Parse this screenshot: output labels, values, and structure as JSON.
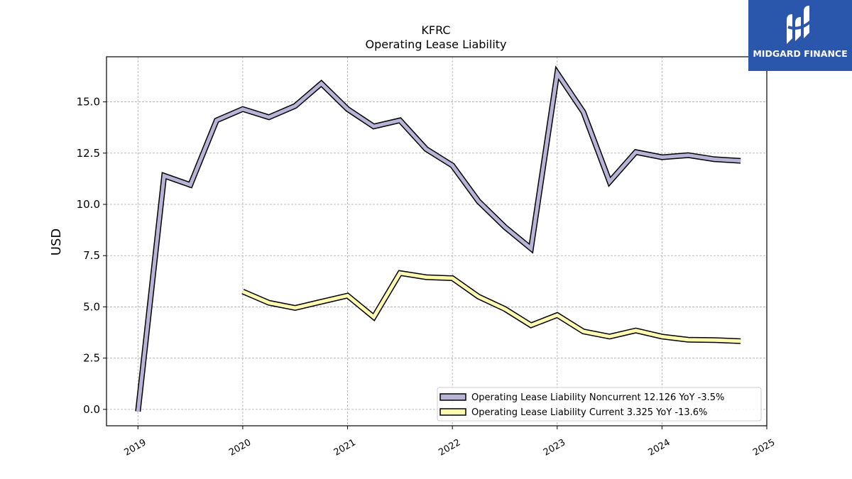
{
  "chart_data": {
    "type": "line",
    "title": "KFRC",
    "subtitle": "Operating Lease Liability",
    "xlabel": "",
    "ylabel": "USD",
    "xlim": [
      2018.7,
      2025.0
    ],
    "ylim": [
      -0.8,
      17.2
    ],
    "x_ticks": [
      2019,
      2020,
      2021,
      2022,
      2023,
      2024,
      2025
    ],
    "y_ticks": [
      0.0,
      2.5,
      5.0,
      7.5,
      10.0,
      12.5,
      15.0
    ],
    "grid": true,
    "legend_position": "lower-right",
    "series": [
      {
        "name": "Operating Lease Liability Noncurrent  12.126 YoY -3.5%",
        "color": "#b8b4d8",
        "x": [
          2019.0,
          2019.25,
          2019.5,
          2019.75,
          2020.0,
          2020.25,
          2020.5,
          2020.75,
          2021.0,
          2021.25,
          2021.5,
          2021.75,
          2022.0,
          2022.25,
          2022.5,
          2022.75,
          2023.0,
          2023.25,
          2023.5,
          2023.75,
          2024.0,
          2024.25,
          2024.5,
          2024.75
        ],
        "y": [
          -0.1,
          11.4,
          10.95,
          14.1,
          14.65,
          14.25,
          14.8,
          15.9,
          14.65,
          13.8,
          14.1,
          12.7,
          11.9,
          10.15,
          8.9,
          7.85,
          16.4,
          14.5,
          11.1,
          12.55,
          12.3,
          12.4,
          12.2,
          12.126
        ]
      },
      {
        "name": "Operating Lease Liability Current  3.325 YoY -13.6%",
        "color": "#fffbb0",
        "x": [
          2020.0,
          2020.25,
          2020.5,
          2020.75,
          2021.0,
          2021.25,
          2021.5,
          2021.75,
          2022.0,
          2022.25,
          2022.5,
          2022.75,
          2023.0,
          2023.25,
          2023.5,
          2023.75,
          2024.0,
          2024.25,
          2024.5,
          2024.75
        ],
        "y": [
          5.75,
          5.2,
          4.95,
          5.25,
          5.55,
          4.5,
          6.65,
          6.45,
          6.4,
          5.5,
          4.9,
          4.1,
          4.6,
          3.8,
          3.55,
          3.85,
          3.55,
          3.4,
          3.38,
          3.325
        ]
      }
    ]
  },
  "logo": {
    "text": "MIDGARD FINANCE"
  }
}
